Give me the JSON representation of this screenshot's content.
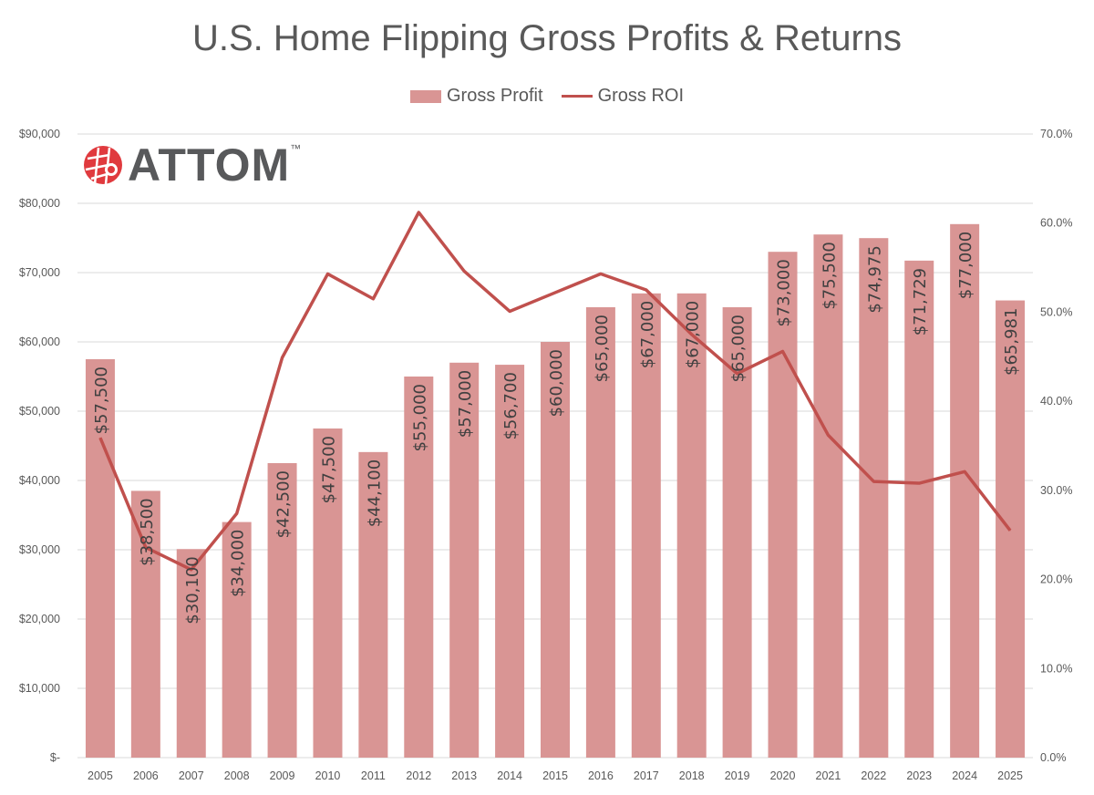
{
  "chart_data": {
    "type": "bar+line",
    "title": "U.S. Home Flipping Gross Profits & Returns",
    "categories": [
      "2005",
      "2006",
      "2007",
      "2008",
      "2009",
      "2010",
      "2011",
      "2012",
      "2013",
      "2014",
      "2015",
      "2016",
      "2017",
      "2018",
      "2019",
      "2020",
      "2021",
      "2022",
      "2023",
      "2024",
      "2025"
    ],
    "series": [
      {
        "name": "Gross Profit",
        "type": "bar",
        "axis": "left",
        "color": "#d99594",
        "values": [
          57500,
          38500,
          30100,
          34000,
          42500,
          47500,
          44100,
          55000,
          57000,
          56700,
          60000,
          65000,
          67000,
          67000,
          65000,
          73000,
          75500,
          74975,
          71729,
          77000,
          65981
        ],
        "labels": [
          "$57,500",
          "$38,500",
          "$30,100",
          "$34,000",
          "$42,500",
          "$47,500",
          "$44,100",
          "$55,000",
          "$57,000",
          "$56,700",
          "$60,000",
          "$65,000",
          "$67,000",
          "$67,000",
          "$65,000",
          "$73,000",
          "$75,500",
          "$74,975",
          "$71,729",
          "$77,000",
          "$65,981"
        ]
      },
      {
        "name": "Gross ROI",
        "type": "line",
        "axis": "right",
        "color": "#c0504d",
        "values": [
          35.9,
          23.6,
          21.1,
          27.4,
          44.9,
          54.3,
          51.5,
          61.2,
          54.6,
          50.1,
          52.2,
          54.3,
          52.5,
          47.5,
          43.1,
          45.6,
          36.2,
          31.0,
          30.8,
          32.1,
          25.5
        ]
      }
    ],
    "left_axis": {
      "ylim": [
        0,
        90000
      ],
      "ticks": [
        "$-",
        "$10,000",
        "$20,000",
        "$30,000",
        "$40,000",
        "$50,000",
        "$60,000",
        "$70,000",
        "$80,000",
        "$90,000"
      ]
    },
    "right_axis": {
      "ylim": [
        0,
        70
      ],
      "ticks": [
        "0.0%",
        "10.0%",
        "20.0%",
        "30.0%",
        "40.0%",
        "50.0%",
        "60.0%",
        "70.0%"
      ]
    },
    "grid": true,
    "legend": "top-center"
  },
  "logo": {
    "text": "ATTOM",
    "tm": "™"
  }
}
